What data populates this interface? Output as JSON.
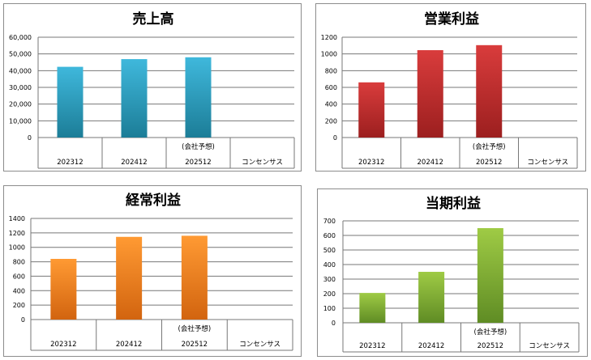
{
  "charts": [
    {
      "type": "bar",
      "title": "売上高",
      "categories": [
        "202312",
        "202412",
        "202512",
        "コンセンサス"
      ],
      "category_notes": [
        "",
        "",
        "(会社予想)",
        ""
      ],
      "values": [
        42300,
        46900,
        48000,
        null
      ],
      "ylim": [
        0,
        60000
      ],
      "yticks": [
        "0",
        "10,000",
        "20,000",
        "30,000",
        "40,000",
        "50,000",
        "60,000"
      ],
      "colors": {
        "top": "#3fb8dc",
        "bottom": "#1c7d97"
      },
      "grid": true
    },
    {
      "type": "bar",
      "title": "営業利益",
      "categories": [
        "202312",
        "202412",
        "202512",
        "コンセンサス"
      ],
      "category_notes": [
        "",
        "",
        "(会社予想)",
        ""
      ],
      "values": [
        660,
        1045,
        1105,
        null
      ],
      "ylim": [
        0,
        1200
      ],
      "yticks": [
        "0",
        "200",
        "400",
        "600",
        "800",
        "1000",
        "1200"
      ],
      "colors": {
        "top": "#d93c3c",
        "bottom": "#9c1f1f"
      },
      "grid": true
    },
    {
      "type": "bar",
      "title": "経常利益",
      "categories": [
        "202312",
        "202412",
        "202512",
        "コンセンサス"
      ],
      "category_notes": [
        "",
        "",
        "(会社予想)",
        ""
      ],
      "values": [
        840,
        1145,
        1160,
        null
      ],
      "ylim": [
        0,
        1400
      ],
      "yticks": [
        "0",
        "200",
        "400",
        "600",
        "800",
        "1000",
        "1200",
        "1400"
      ],
      "colors": {
        "top": "#ff9a33",
        "bottom": "#d2640f"
      },
      "grid": true
    },
    {
      "type": "bar",
      "title": "当期利益",
      "categories": [
        "202312",
        "202412",
        "202512",
        "コンセンサス"
      ],
      "category_notes": [
        "",
        "",
        "(会社予想)",
        ""
      ],
      "values": [
        205,
        350,
        650,
        null
      ],
      "ylim": [
        0,
        700
      ],
      "yticks": [
        "0",
        "100",
        "200",
        "300",
        "400",
        "500",
        "600",
        "700"
      ],
      "colors": {
        "top": "#9fcb45",
        "bottom": "#5f8c24"
      },
      "grid": true
    }
  ]
}
